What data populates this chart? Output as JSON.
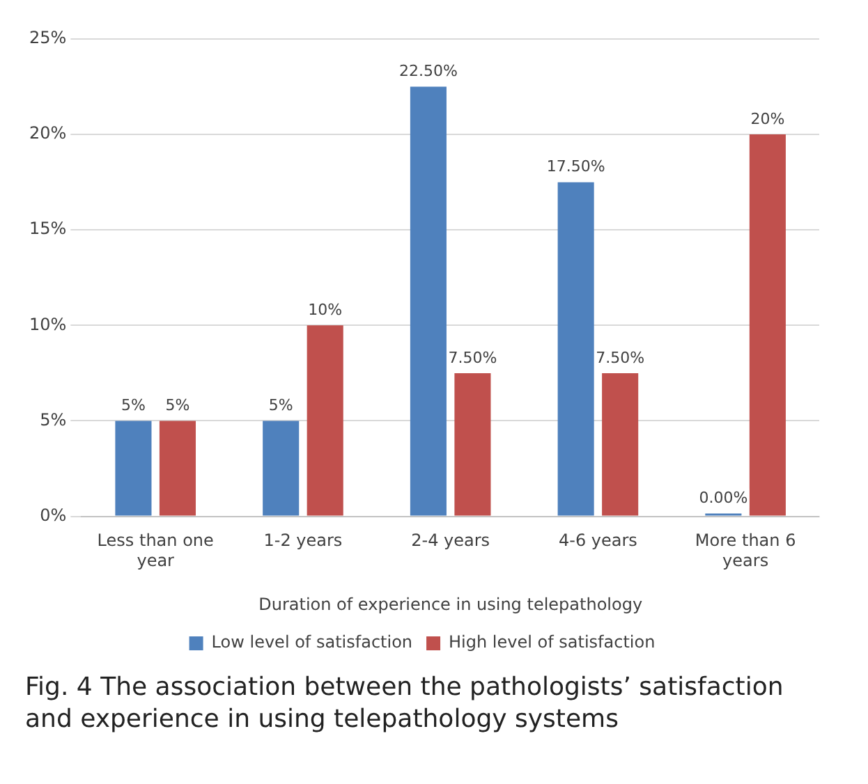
{
  "chart_data": {
    "type": "bar",
    "xlabel": "Duration of experience in using telepathology",
    "categories": [
      "Less than one year",
      "1-2 years",
      "2-4 years",
      "4-6 years",
      "More than 6 years"
    ],
    "series": [
      {
        "name": "Low level of satisfaction",
        "color": "#4f81bd",
        "values": [
          5,
          5,
          22.5,
          17.5,
          0
        ],
        "value_labels": [
          "5%",
          "5%",
          "22.50%",
          "17.50%",
          "0.00%"
        ]
      },
      {
        "name": "High level of satisfaction",
        "color": "#c0504d",
        "values": [
          5,
          10,
          7.5,
          7.5,
          20
        ],
        "value_labels": [
          "5%",
          "10%",
          "7.50%",
          "7.50%",
          "20%"
        ]
      }
    ],
    "ylim": [
      0,
      25
    ],
    "yticks": [
      {
        "value": 0,
        "label": "0%"
      },
      {
        "value": 5,
        "label": "5%"
      },
      {
        "value": 10,
        "label": "10%"
      },
      {
        "value": 15,
        "label": "15%"
      },
      {
        "value": 20,
        "label": "20%"
      },
      {
        "value": 25,
        "label": "25%"
      }
    ],
    "grid": "y",
    "legend": "bottom",
    "annotations": [
      "Fig. 4  The association between the pathologists’ satisfaction and experience in using telepathology systems"
    ]
  }
}
